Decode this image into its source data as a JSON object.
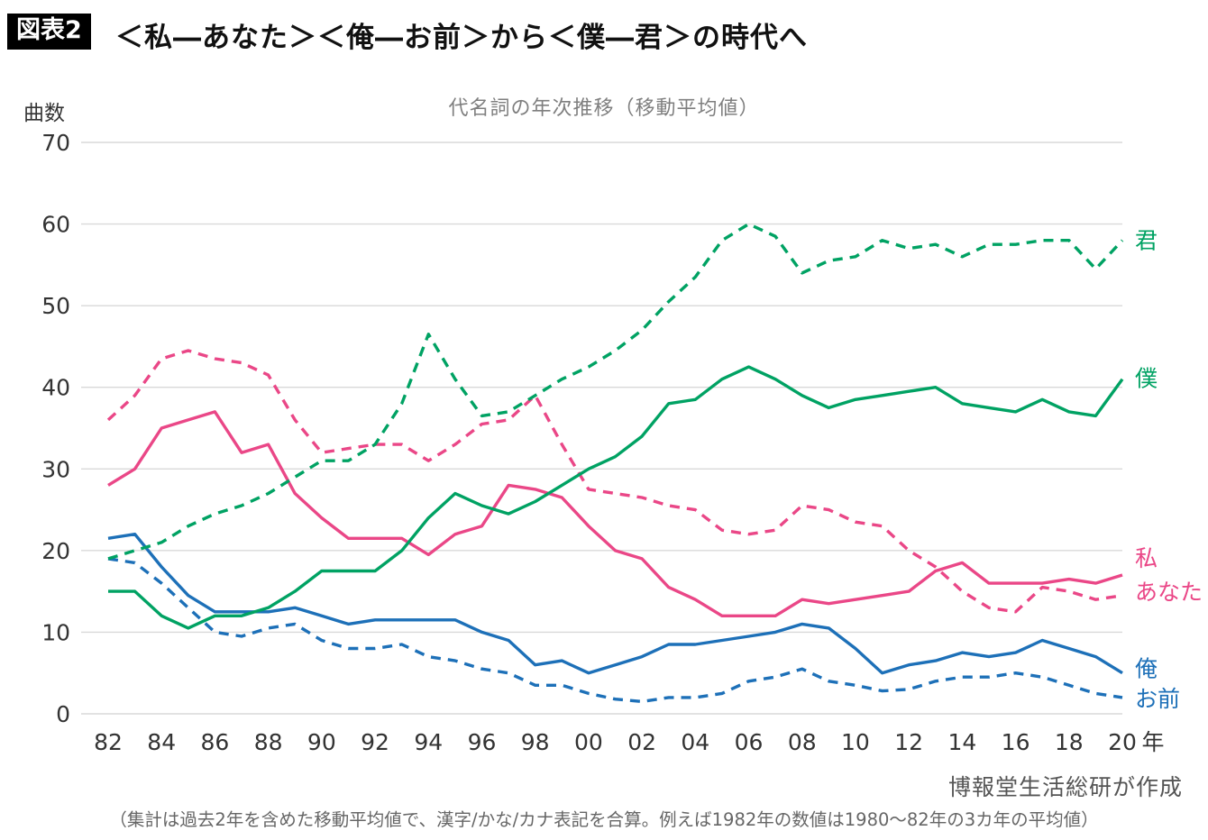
{
  "header": {
    "tag": "図表2",
    "title": "＜私―あなた＞＜俺―お前＞から＜僕―君＞の時代へ"
  },
  "footer": {
    "source": "博報堂生活総研が作成",
    "note": "（集計は過去2年を含めた移動平均値で、漢字/かな/カナ表記を合算。例えば1982年の数値は1980〜82年の3カ年の平均値）"
  },
  "chart_data": {
    "type": "line",
    "title": "代名詞の年次推移（移動平均値）",
    "ylabel": "曲数",
    "xlabel_suffix": "年",
    "ylim": [
      0,
      70
    ],
    "yticks": [
      0,
      10,
      20,
      30,
      40,
      50,
      60,
      70
    ],
    "grid": true,
    "legend_position": "right-end-labels",
    "x_tick_step": 2,
    "x_labels": [
      "82",
      "83",
      "84",
      "85",
      "86",
      "87",
      "88",
      "89",
      "90",
      "91",
      "92",
      "93",
      "94",
      "95",
      "96",
      "97",
      "98",
      "99",
      "00",
      "01",
      "02",
      "03",
      "04",
      "05",
      "06",
      "07",
      "08",
      "09",
      "10",
      "11",
      "12",
      "13",
      "14",
      "15",
      "16",
      "17",
      "18",
      "19",
      "20"
    ],
    "series": [
      {
        "name": "あなた",
        "color": "#ea4787",
        "style": "dashed",
        "values": [
          36,
          39,
          43.5,
          44.5,
          43.5,
          43,
          41.5,
          36,
          32,
          32.5,
          33,
          33,
          31,
          33,
          35.5,
          36,
          39,
          33,
          27.5,
          27,
          26.5,
          25.5,
          25,
          22.5,
          22,
          22.5,
          25.5,
          25,
          23.5,
          23,
          20,
          18,
          15,
          13,
          12.5,
          15.5,
          15,
          14,
          14.5
        ]
      },
      {
        "name": "私",
        "color": "#ea4787",
        "style": "solid",
        "values": [
          28,
          30,
          35,
          36,
          37,
          32,
          33,
          27,
          24,
          21.5,
          21.5,
          21.5,
          19.5,
          22,
          23,
          28,
          27.5,
          26.5,
          23,
          20,
          19,
          15.5,
          14,
          12,
          12,
          12,
          14,
          13.5,
          14,
          14.5,
          15,
          17.5,
          18.5,
          16,
          16,
          16,
          16.5,
          16,
          17
        ]
      },
      {
        "name": "お前",
        "color": "#1d70b8",
        "style": "dashed",
        "values": [
          19,
          18.5,
          16,
          13,
          10,
          9.5,
          10.5,
          11,
          9,
          8,
          8,
          8.5,
          7,
          6.5,
          5.5,
          5,
          3.5,
          3.5,
          2.5,
          1.8,
          1.5,
          2,
          2,
          2.5,
          4,
          4.5,
          5.5,
          4,
          3.5,
          2.8,
          3,
          4,
          4.5,
          4.5,
          5,
          4.5,
          3.5,
          2.5,
          2
        ]
      },
      {
        "name": "俺",
        "color": "#1d70b8",
        "style": "solid",
        "values": [
          21.5,
          22,
          18,
          14.5,
          12.5,
          12.5,
          12.5,
          13,
          12,
          11,
          11.5,
          11.5,
          11.5,
          11.5,
          10,
          9,
          6,
          6.5,
          5,
          6,
          7,
          8.5,
          8.5,
          9,
          9.5,
          10,
          11,
          10.5,
          8,
          5,
          6,
          6.5,
          7.5,
          7,
          7.5,
          9,
          8,
          7,
          5
        ]
      },
      {
        "name": "君",
        "color": "#00a263",
        "style": "dashed",
        "values": [
          19,
          20,
          21,
          23,
          24.5,
          25.5,
          27,
          29,
          31,
          31,
          33,
          38,
          46.5,
          41,
          36.5,
          37,
          39,
          41,
          42.5,
          44.5,
          47,
          50.5,
          53.5,
          58,
          60,
          58.5,
          54,
          55.5,
          56,
          58,
          57,
          57.5,
          56,
          57.5,
          57.5,
          58,
          58,
          54.5,
          58
        ]
      },
      {
        "name": "僕",
        "color": "#00a263",
        "style": "solid",
        "values": [
          15,
          15,
          12,
          10.5,
          12,
          12,
          13,
          15,
          17.5,
          17.5,
          17.5,
          20,
          24,
          27,
          25.5,
          24.5,
          26,
          28,
          30,
          31.5,
          34,
          38,
          38.5,
          41,
          42.5,
          41,
          39,
          37.5,
          38.5,
          39,
          39.5,
          40,
          38,
          37.5,
          37,
          38.5,
          37,
          36.5,
          41
        ]
      }
    ]
  }
}
